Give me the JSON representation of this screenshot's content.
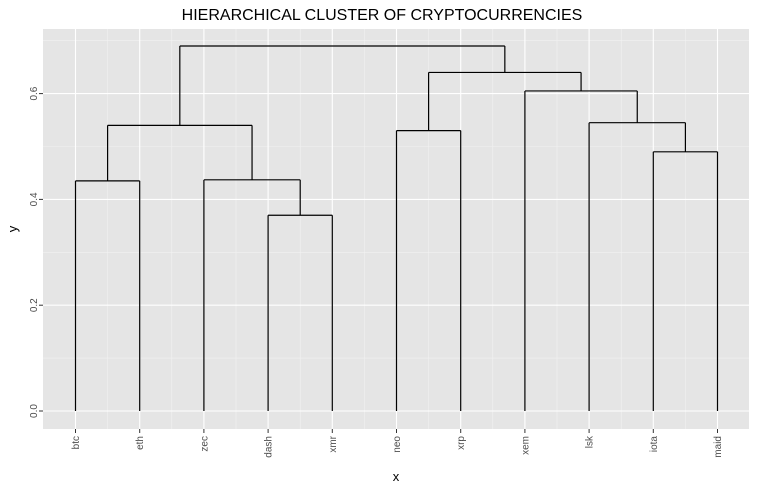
{
  "chart_data": {
    "type": "dendrogram",
    "title": "HIERARCHICAL CLUSTER OF CRYPTOCURRENCIES",
    "xlabel": "x",
    "ylabel": "y",
    "ylim": [
      -0.02,
      0.72
    ],
    "y_ticks": [
      0.0,
      0.2,
      0.4,
      0.6
    ],
    "y_tick_labels": [
      "0.0",
      "0.2",
      "0.4",
      "0.6"
    ],
    "leaves": [
      "btc",
      "eth",
      "zec",
      "dash",
      "xmr",
      "neo",
      "xrp",
      "xem",
      "lsk",
      "iota",
      "maid"
    ],
    "merges": [
      {
        "left": "btc",
        "right": "eth",
        "height": 0.435
      },
      {
        "left": "dash",
        "right": "xmr",
        "height": 0.37
      },
      {
        "left": "zec",
        "right": "dash+xmr",
        "height": 0.437
      },
      {
        "left": "btc+eth",
        "right": "zec+dash+xmr",
        "height": 0.54
      },
      {
        "left": "neo",
        "right": "xrp",
        "height": 0.53
      },
      {
        "left": "iota",
        "right": "maid",
        "height": 0.49
      },
      {
        "left": "lsk",
        "right": "iota+maid",
        "height": 0.545
      },
      {
        "left": "xem",
        "right": "lsk+iota+maid",
        "height": 0.605
      },
      {
        "left": "neo+xrp",
        "right": "xem+lsk+iota+maid",
        "height": 0.64
      },
      {
        "left": "btc..xmr",
        "right": "neo..maid",
        "height": 0.69
      }
    ],
    "segments": [
      [
        1,
        0.0,
        1,
        0.435
      ],
      [
        2,
        0.0,
        2,
        0.435
      ],
      [
        1,
        0.435,
        2,
        0.435
      ],
      [
        4,
        0.0,
        4,
        0.37
      ],
      [
        5,
        0.0,
        5,
        0.37
      ],
      [
        4,
        0.37,
        5,
        0.37
      ],
      [
        3,
        0.0,
        3,
        0.437
      ],
      [
        4.5,
        0.37,
        4.5,
        0.437
      ],
      [
        3,
        0.437,
        4.5,
        0.437
      ],
      [
        1.5,
        0.435,
        1.5,
        0.54
      ],
      [
        3.75,
        0.437,
        3.75,
        0.54
      ],
      [
        1.5,
        0.54,
        3.75,
        0.54
      ],
      [
        6,
        0.0,
        6,
        0.53
      ],
      [
        7,
        0.0,
        7,
        0.53
      ],
      [
        6,
        0.53,
        7,
        0.53
      ],
      [
        10,
        0.0,
        10,
        0.49
      ],
      [
        11,
        0.0,
        11,
        0.49
      ],
      [
        10,
        0.49,
        11,
        0.49
      ],
      [
        9,
        0.0,
        9,
        0.545
      ],
      [
        10.5,
        0.49,
        10.5,
        0.545
      ],
      [
        9,
        0.545,
        10.5,
        0.545
      ],
      [
        8,
        0.0,
        8,
        0.605
      ],
      [
        9.75,
        0.545,
        9.75,
        0.605
      ],
      [
        8,
        0.605,
        9.75,
        0.605
      ],
      [
        6.5,
        0.53,
        6.5,
        0.64
      ],
      [
        8.875,
        0.605,
        8.875,
        0.64
      ],
      [
        6.5,
        0.64,
        8.875,
        0.64
      ],
      [
        2.625,
        0.54,
        2.625,
        0.69
      ],
      [
        7.6875,
        0.64,
        7.6875,
        0.69
      ],
      [
        2.625,
        0.69,
        7.6875,
        0.69
      ]
    ],
    "grid": true,
    "panel_background": "#e5e5e5",
    "grid_color": "#ffffff",
    "line_color": "#000000"
  }
}
